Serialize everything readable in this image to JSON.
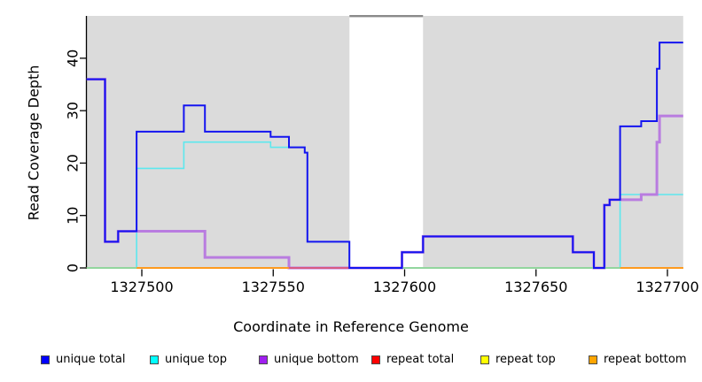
{
  "chart_data": {
    "type": "line-step",
    "xlabel": "Coordinate in Reference Genome",
    "ylabel": "Read Coverage Depth",
    "xlim": [
      1327479,
      1327706
    ],
    "ylim": [
      0,
      48
    ],
    "x_ticks": [
      1327500,
      1327550,
      1327600,
      1327650,
      1327700
    ],
    "y_ticks": [
      0,
      10,
      20,
      30,
      40
    ],
    "grid": false,
    "legend_position": "bottom",
    "plot_bg": "#DBDBDB",
    "gap_region": {
      "from": 1327579,
      "to": 1327607,
      "fill": "#FFFFFF",
      "top_bar_color": "#8A8A8A"
    },
    "shaded_regions": [
      {
        "from": 1327479,
        "to": 1327579
      },
      {
        "from": 1327607,
        "to": 1327706
      }
    ],
    "series": [
      {
        "name": "repeat total",
        "color": "#DD2222",
        "width": 1.4,
        "points": [
          [
            1327479,
            0
          ],
          [
            1327706,
            0
          ]
        ]
      },
      {
        "name": "repeat top",
        "color": "#E8E800",
        "width": 1.4,
        "points": [
          [
            1327479,
            0
          ],
          [
            1327706,
            0
          ]
        ]
      },
      {
        "name": "repeat bottom",
        "color": "#FF9A1E",
        "width": 1.8,
        "points": [
          [
            1327479,
            0
          ],
          [
            1327706,
            0
          ]
        ]
      },
      {
        "name": "unique top",
        "color": "#5CE8EE",
        "width": 1.6,
        "points": [
          [
            1327479,
            0
          ],
          [
            1327498,
            19
          ],
          [
            1327516,
            24
          ],
          [
            1327549,
            23
          ],
          [
            1327562,
            22
          ],
          [
            1327563,
            5
          ],
          [
            1327579,
            0
          ],
          [
            1327682,
            14
          ],
          [
            1327706,
            14
          ]
        ]
      },
      {
        "name": "unique bottom",
        "color": "#B97CE0",
        "width": 3,
        "points": [
          [
            1327479,
            36
          ],
          [
            1327486,
            5
          ],
          [
            1327491,
            7
          ],
          [
            1327524,
            2
          ],
          [
            1327556,
            0
          ],
          [
            1327599,
            3
          ],
          [
            1327607,
            6
          ],
          [
            1327664,
            3
          ],
          [
            1327672,
            0
          ],
          [
            1327676,
            12
          ],
          [
            1327678,
            13
          ],
          [
            1327690,
            14
          ],
          [
            1327696,
            24
          ],
          [
            1327697,
            29
          ],
          [
            1327706,
            29
          ]
        ]
      },
      {
        "name": "unique total",
        "color": "#1414F0",
        "width": 2,
        "points": [
          [
            1327479,
            36
          ],
          [
            1327486,
            5
          ],
          [
            1327491,
            7
          ],
          [
            1327498,
            26
          ],
          [
            1327516,
            31
          ],
          [
            1327524,
            26
          ],
          [
            1327549,
            25
          ],
          [
            1327556,
            23
          ],
          [
            1327562,
            22
          ],
          [
            1327563,
            5
          ],
          [
            1327579,
            0
          ],
          [
            1327599,
            3
          ],
          [
            1327607,
            6
          ],
          [
            1327664,
            3
          ],
          [
            1327672,
            0
          ],
          [
            1327676,
            12
          ],
          [
            1327678,
            13
          ],
          [
            1327682,
            27
          ],
          [
            1327690,
            28
          ],
          [
            1327696,
            38
          ],
          [
            1327697,
            43
          ],
          [
            1327706,
            43
          ]
        ]
      }
    ],
    "baseline_after": "unique bottom",
    "baseline_segments": [
      {
        "from": 1327479,
        "to": 1327498,
        "color": "#8FD9A0"
      },
      {
        "from": 1327498,
        "to": 1327556,
        "color": "#FF9A1E"
      },
      {
        "from": 1327556,
        "to": 1327579,
        "color": "#DD5577"
      },
      {
        "from": 1327599,
        "to": 1327672,
        "color": "#8FD9A0"
      },
      {
        "from": 1327676,
        "to": 1327682,
        "color": "#8FD9A0"
      },
      {
        "from": 1327682,
        "to": 1327706,
        "color": "#FF9A1E"
      }
    ]
  },
  "legend": {
    "items": [
      {
        "label": "unique total",
        "color": "#0000FF"
      },
      {
        "label": "unique top",
        "color": "#00FFFF"
      },
      {
        "label": "unique bottom",
        "color": "#A020F0"
      },
      {
        "label": "repeat total",
        "color": "#FF0000"
      },
      {
        "label": "repeat top",
        "color": "#FFFF00"
      },
      {
        "label": "repeat bottom",
        "color": "#FFA500"
      }
    ]
  },
  "axes": {
    "x_title": "Coordinate in Reference Genome",
    "y_title": "Read Coverage Depth",
    "axis_color": "#000000"
  }
}
